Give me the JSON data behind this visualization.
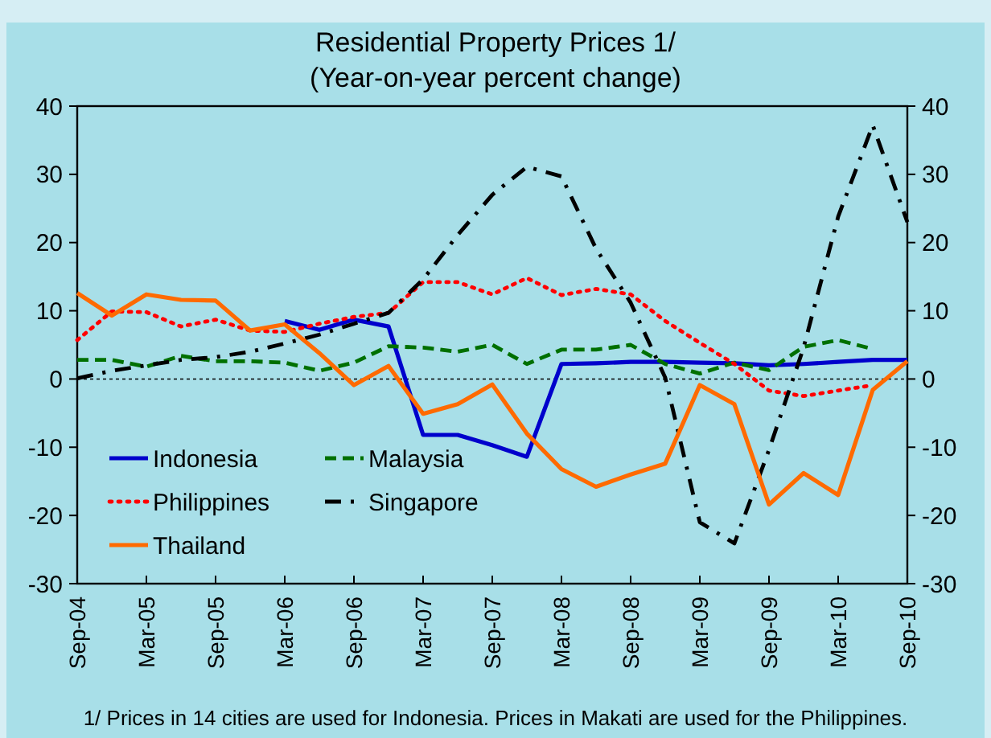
{
  "chart_data": {
    "type": "line",
    "title": "Residential Property Prices 1/",
    "subtitle": "(Year-on-year percent change)",
    "categories": [
      "Sep-04",
      null,
      "Mar-05",
      null,
      "Sep-05",
      null,
      "Mar-06",
      null,
      "Sep-06",
      null,
      "Mar-07",
      null,
      "Sep-07",
      null,
      "Mar-08",
      null,
      "Sep-08",
      null,
      "Mar-09",
      null,
      "Sep-09",
      null,
      "Mar-10",
      null,
      "Sep-10"
    ],
    "series": [
      {
        "name": "Indonesia",
        "color": "#0000cc",
        "line_style": "solid",
        "values": [
          null,
          null,
          null,
          null,
          null,
          null,
          8.5,
          7.2,
          8.7,
          7.7,
          -8.2,
          -8.2,
          -9.7,
          -11.4,
          2.2,
          2.3,
          2.5,
          2.5,
          2.4,
          2.3,
          2.0,
          2.2,
          2.5,
          2.8,
          2.8
        ]
      },
      {
        "name": "Malaysia",
        "color": "#007000",
        "line_style": "dashed",
        "values": [
          2.8,
          2.8,
          1.8,
          3.4,
          2.6,
          2.6,
          2.4,
          1.2,
          2.4,
          4.8,
          4.6,
          4.0,
          5.0,
          2.2,
          4.3,
          4.3,
          5.0,
          2.2,
          0.8,
          2.4,
          1.3,
          4.7,
          5.7,
          4.4,
          null
        ]
      },
      {
        "name": "Philippines",
        "color": "#ff0000",
        "line_style": "dotted",
        "values": [
          5.7,
          9.9,
          9.8,
          7.7,
          8.7,
          7.1,
          6.9,
          8.1,
          9.1,
          9.7,
          14.2,
          14.2,
          12.4,
          14.8,
          12.3,
          13.2,
          12.4,
          8.5,
          5.3,
          2.2,
          -1.7,
          -2.5,
          -1.7,
          -0.9,
          null
        ]
      },
      {
        "name": "Singapore",
        "color": "#000000",
        "line_style": "dashdot",
        "values": [
          0.1,
          1.2,
          2.0,
          2.8,
          3.2,
          4.0,
          5.2,
          6.5,
          8.1,
          9.7,
          14.6,
          21.1,
          27.0,
          31.1,
          29.7,
          19.1,
          11.2,
          0.2,
          -21.0,
          -24.1,
          -10.4,
          4.6,
          23.8,
          37.2,
          23.0
        ]
      },
      {
        "name": "Thailand",
        "color": "#ff6a00",
        "line_style": "solid",
        "values": [
          12.6,
          9.3,
          12.4,
          11.6,
          11.5,
          7.1,
          8.0,
          3.8,
          -0.9,
          1.9,
          -5.1,
          -3.7,
          -0.8,
          -8.0,
          -13.2,
          -15.8,
          -14.0,
          -12.4,
          -0.9,
          -3.7,
          -18.4,
          -13.8,
          -17.0,
          -1.6,
          2.6
        ]
      }
    ],
    "ylim": [
      -30,
      40
    ],
    "yticks": [
      -30,
      -20,
      -10,
      0,
      10,
      20,
      30,
      40
    ],
    "y2lim": [
      -30,
      40
    ],
    "y2ticks": [
      -30,
      -20,
      -10,
      0,
      10,
      20,
      30,
      40
    ],
    "ref_lines": [
      {
        "axis": "y",
        "value": 0,
        "color": "#000000",
        "line_style": "dotted"
      }
    ],
    "legend": "bottom left",
    "annotations": [
      "1/ Prices in 14 cities are used for Indonesia. Prices in Makati are used for the Philippines."
    ]
  }
}
